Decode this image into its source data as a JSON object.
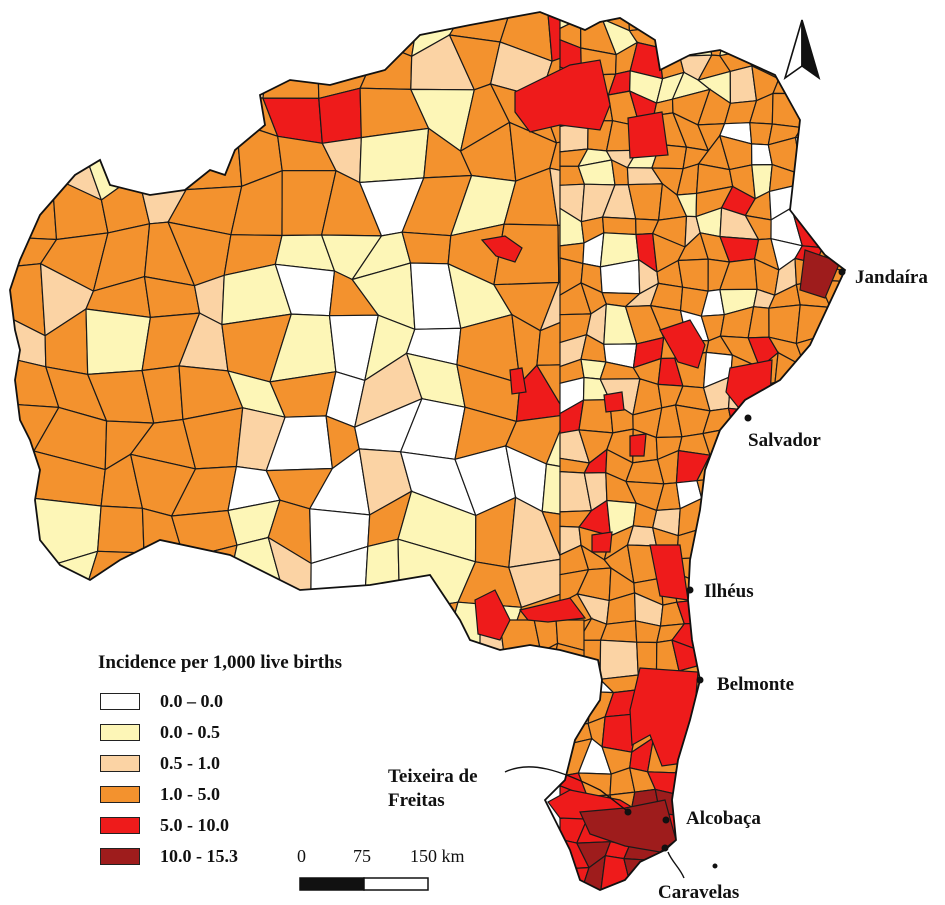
{
  "legend": {
    "title": "Incidence per 1,000 live births",
    "items": [
      {
        "label": "0.0 – 0.0",
        "color": "#ffffff"
      },
      {
        "label": "0.0 - 0.5",
        "color": "#fdf6b7"
      },
      {
        "label": "0.5 - 1.0",
        "color": "#fbd3a4"
      },
      {
        "label": "1.0 - 5.0",
        "color": "#f3922e"
      },
      {
        "label": "5.0 - 10.0",
        "color": "#ee1b1b"
      },
      {
        "label": "10.0 - 15.3",
        "color": "#9e1c1c"
      }
    ]
  },
  "scale_bar": {
    "zero": "0",
    "mid": "75",
    "end": "150 km"
  },
  "cities": {
    "jandaira": "Jandaíra",
    "salvador": "Salvador",
    "ilheus": "Ilhéus",
    "belmonte": "Belmonte",
    "teixeira_line1": "Teixeira de",
    "teixeira_line2": "Freitas",
    "alcobaca": "Alcobaça",
    "caravelas": "Caravelas"
  },
  "north_arrow": "north-arrow"
}
